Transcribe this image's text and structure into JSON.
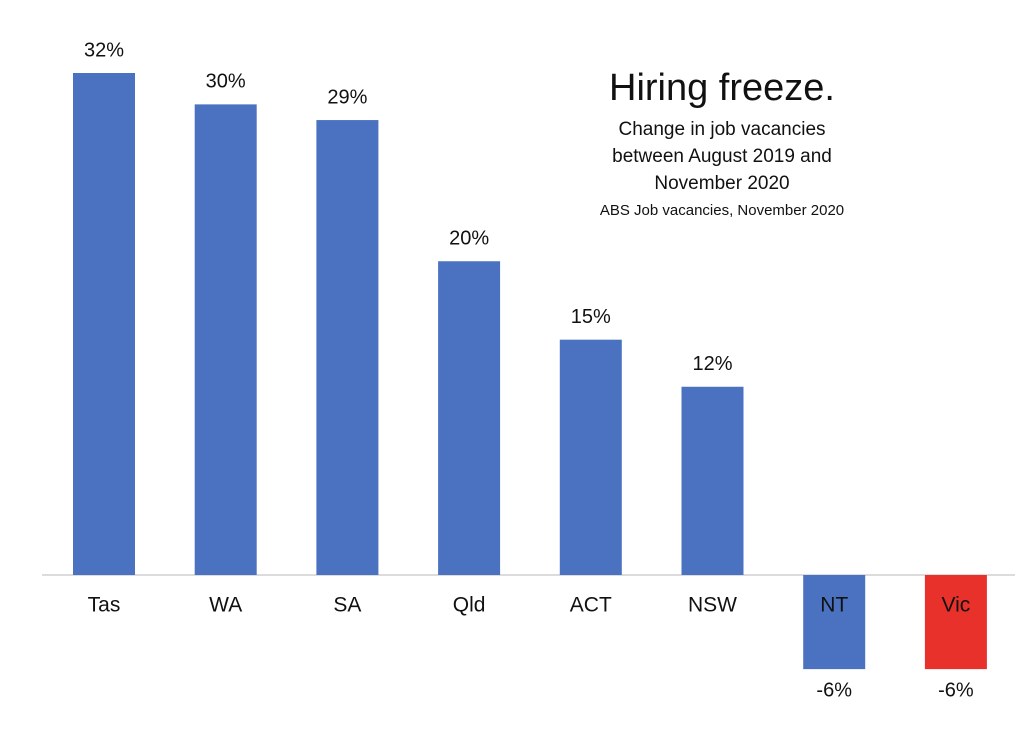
{
  "chart_data": {
    "type": "bar",
    "title": "Hiring freeze.",
    "subtitle": [
      "Change in job vacancies",
      "between August 2019 and",
      "November 2020"
    ],
    "source": "ABS Job vacancies, November 2020",
    "categories": [
      "Tas",
      "WA",
      "SA",
      "Qld",
      "ACT",
      "NSW",
      "NT",
      "Vic"
    ],
    "values": [
      32,
      30,
      29,
      20,
      15,
      12,
      -6,
      -6
    ],
    "value_labels": [
      "32%",
      "30%",
      "29%",
      "20%",
      "15%",
      "12%",
      "-6%",
      "-6%"
    ],
    "colors": [
      "#4a72c0",
      "#4a72c0",
      "#4a72c0",
      "#4a72c0",
      "#4a72c0",
      "#4a72c0",
      "#4a72c0",
      "#e8312a"
    ]
  }
}
